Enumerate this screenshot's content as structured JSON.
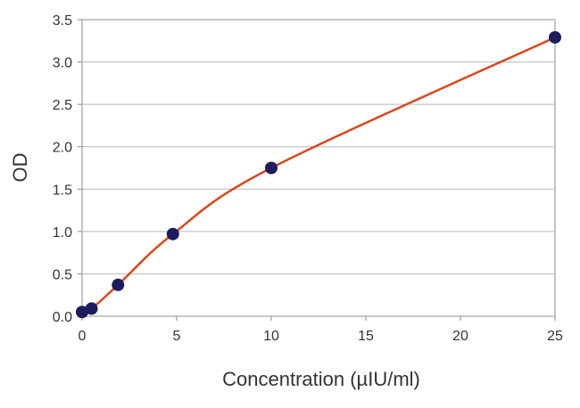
{
  "chart_data": {
    "type": "line",
    "title": "",
    "xlabel": "Concentration (µIU/ml)",
    "ylabel": "OD",
    "xlim": [
      0,
      25
    ],
    "ylim": [
      0,
      3.5
    ],
    "x_ticks": [
      "0",
      "5",
      "10",
      "15",
      "20",
      "25"
    ],
    "y_ticks": [
      "0.0",
      "0.5",
      "1.0",
      "1.5",
      "2.0",
      "2.5",
      "3.0",
      "3.5"
    ],
    "grid": "horizontal",
    "legend": "none",
    "series": [
      {
        "x": [
          0,
          0.5,
          1.9,
          4.8,
          10,
          25
        ],
        "y": [
          0.05,
          0.09,
          0.37,
          0.97,
          1.75,
          3.29
        ],
        "marker_color": "#1c1c5e",
        "line_color": "#d9481c"
      }
    ]
  }
}
